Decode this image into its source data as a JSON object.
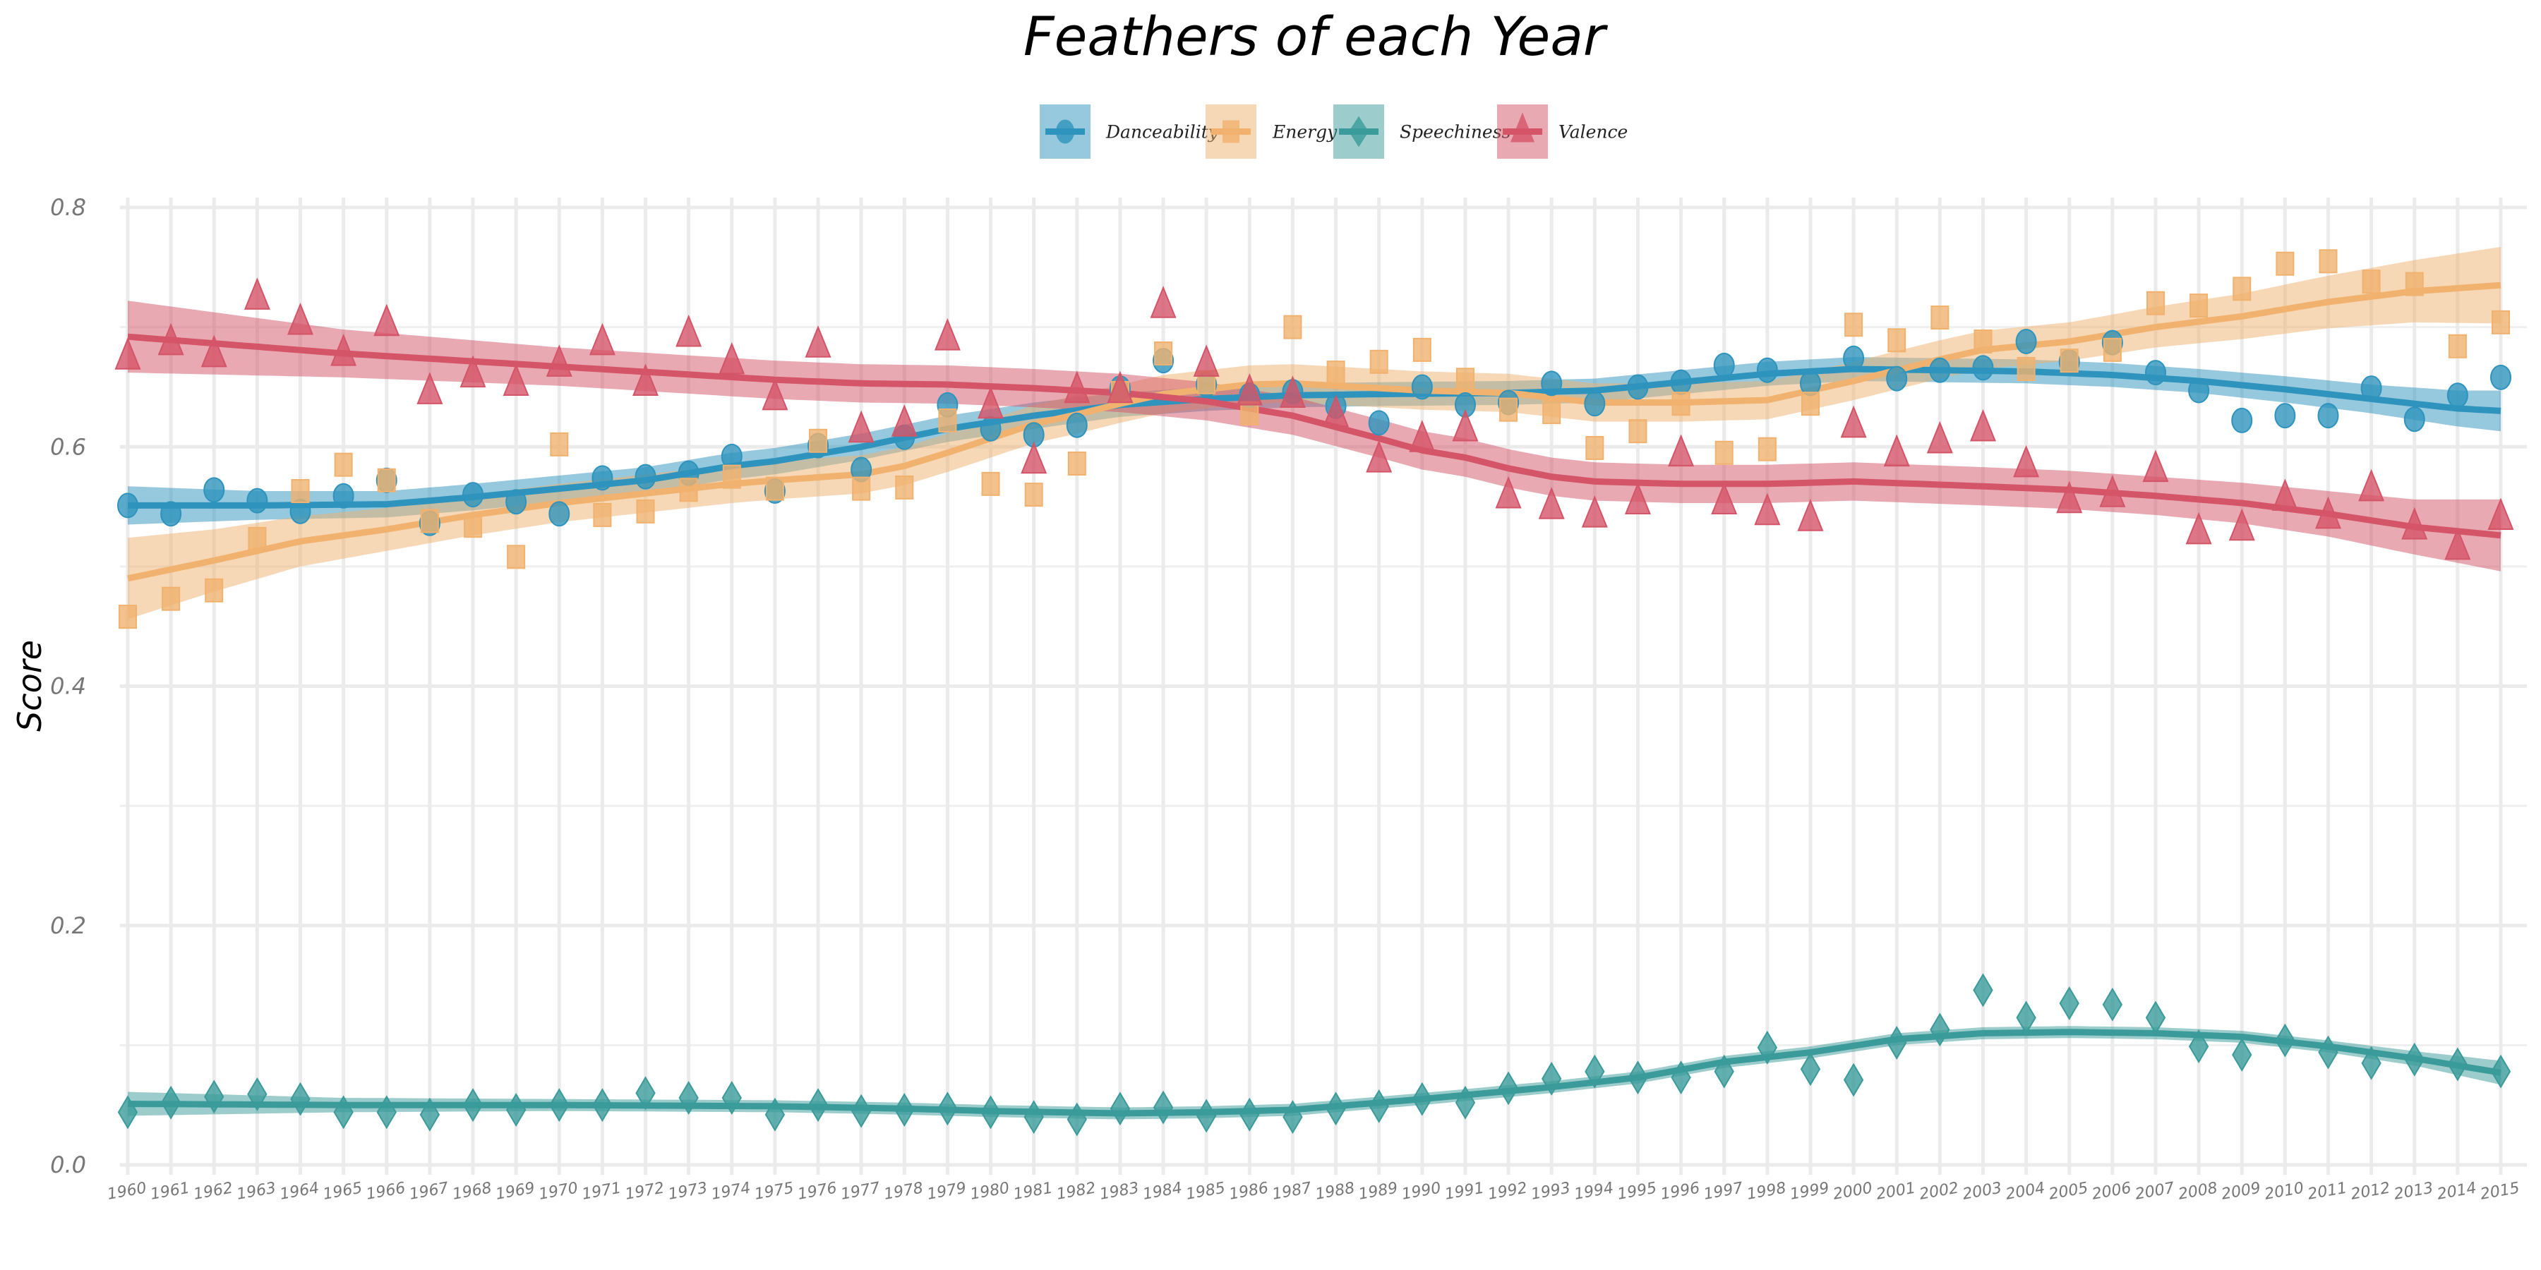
{
  "chart_data": {
    "type": "scatter",
    "title": "Feathers of each Year",
    "xlabel": "",
    "ylabel": "Score",
    "ylim": [
      0,
      0.8
    ],
    "yticks": [
      "0.0",
      "0.2",
      "0.4",
      "0.6",
      "0.8"
    ],
    "ytick_values": [
      0,
      0.2,
      0.4,
      0.6,
      0.8
    ],
    "xlim": [
      1960,
      2015
    ],
    "grid": true,
    "legend_position": "top",
    "x": [
      1960,
      1961,
      1962,
      1963,
      1964,
      1965,
      1966,
      1967,
      1968,
      1969,
      1970,
      1971,
      1972,
      1973,
      1974,
      1975,
      1976,
      1977,
      1978,
      1979,
      1980,
      1981,
      1982,
      1983,
      1984,
      1985,
      1986,
      1987,
      1988,
      1989,
      1990,
      1991,
      1992,
      1993,
      1994,
      1995,
      1996,
      1997,
      1998,
      1999,
      2000,
      2001,
      2002,
      2003,
      2004,
      2005,
      2006,
      2007,
      2008,
      2009,
      2010,
      2011,
      2012,
      2013,
      2014,
      2015
    ],
    "series": [
      {
        "name": "Danceability",
        "color": "#2E94BD",
        "marker": "circle",
        "values": [
          0.551,
          0.544,
          0.564,
          0.555,
          0.546,
          0.559,
          0.572,
          0.536,
          0.56,
          0.554,
          0.544,
          0.574,
          0.575,
          0.578,
          0.592,
          0.563,
          0.601,
          0.581,
          0.608,
          0.635,
          0.615,
          0.61,
          0.618,
          0.649,
          0.672,
          0.652,
          0.643,
          0.646,
          0.634,
          0.62,
          0.65,
          0.635,
          0.637,
          0.653,
          0.636,
          0.65,
          0.654,
          0.668,
          0.664,
          0.653,
          0.674,
          0.657,
          0.664,
          0.666,
          0.688,
          0.671,
          0.687,
          0.662,
          0.647,
          0.622,
          0.626,
          0.626,
          0.649,
          0.623,
          0.643,
          0.658
        ],
        "smooth": {
          "x": [
            1960,
            1963,
            1966,
            1968,
            1970,
            1972,
            1974,
            1975,
            1977,
            1979,
            1981,
            1983,
            1985,
            1987,
            1989,
            1992,
            1994,
            1996,
            1998,
            2000,
            2002,
            2004,
            2006,
            2008,
            2010,
            2012,
            2014,
            2015
          ],
          "fit": [
            0.551,
            0.551,
            0.552,
            0.558,
            0.565,
            0.572,
            0.584,
            0.588,
            0.6,
            0.615,
            0.626,
            0.635,
            0.64,
            0.643,
            0.644,
            0.645,
            0.647,
            0.654,
            0.661,
            0.665,
            0.664,
            0.663,
            0.66,
            0.655,
            0.648,
            0.64,
            0.632,
            0.63
          ],
          "se": [
            0.016,
            0.012,
            0.011,
            0.011,
            0.011,
            0.011,
            0.011,
            0.011,
            0.011,
            0.011,
            0.011,
            0.01,
            0.01,
            0.01,
            0.01,
            0.01,
            0.01,
            0.01,
            0.01,
            0.01,
            0.01,
            0.01,
            0.01,
            0.01,
            0.011,
            0.012,
            0.015,
            0.017
          ]
        }
      },
      {
        "name": "Energy",
        "color": "#F0B26E",
        "marker": "square",
        "values": [
          0.458,
          0.473,
          0.48,
          0.523,
          0.563,
          0.585,
          0.572,
          0.538,
          0.534,
          0.508,
          0.602,
          0.543,
          0.546,
          0.564,
          0.575,
          0.565,
          0.605,
          0.565,
          0.566,
          0.622,
          0.569,
          0.56,
          0.586,
          0.645,
          0.678,
          0.654,
          0.628,
          0.7,
          0.662,
          0.671,
          0.681,
          0.656,
          0.631,
          0.629,
          0.599,
          0.613,
          0.636,
          0.595,
          0.598,
          0.636,
          0.702,
          0.689,
          0.708,
          0.688,
          0.665,
          0.672,
          0.681,
          0.72,
          0.718,
          0.732,
          0.753,
          0.755,
          0.738,
          0.736,
          0.684,
          0.704
        ],
        "smooth": {
          "x": [
            1960,
            1962,
            1964,
            1966,
            1968,
            1970,
            1972,
            1974,
            1975,
            1977,
            1978,
            1979,
            1980,
            1981,
            1982,
            1983,
            1984,
            1985,
            1986,
            1987,
            1988,
            1990,
            1992,
            1994,
            1996,
            1998,
            1999,
            2000,
            2001,
            2002,
            2003,
            2005,
            2007,
            2009,
            2011,
            2013,
            2015
          ],
          "fit": [
            0.49,
            0.505,
            0.521,
            0.531,
            0.543,
            0.553,
            0.561,
            0.569,
            0.572,
            0.577,
            0.584,
            0.595,
            0.607,
            0.619,
            0.627,
            0.636,
            0.644,
            0.648,
            0.652,
            0.653,
            0.651,
            0.647,
            0.645,
            0.637,
            0.637,
            0.639,
            0.647,
            0.655,
            0.664,
            0.673,
            0.681,
            0.688,
            0.7,
            0.709,
            0.721,
            0.73,
            0.735
          ],
          "se": [
            0.034,
            0.026,
            0.021,
            0.018,
            0.017,
            0.016,
            0.016,
            0.016,
            0.016,
            0.016,
            0.016,
            0.016,
            0.016,
            0.016,
            0.016,
            0.016,
            0.016,
            0.016,
            0.016,
            0.016,
            0.016,
            0.016,
            0.016,
            0.016,
            0.016,
            0.016,
            0.016,
            0.016,
            0.016,
            0.016,
            0.016,
            0.016,
            0.017,
            0.019,
            0.022,
            0.026,
            0.032
          ]
        }
      },
      {
        "name": "Speechiness",
        "color": "#3A9B9A",
        "marker": "diamond",
        "values": [
          0.044,
          0.052,
          0.057,
          0.059,
          0.055,
          0.044,
          0.044,
          0.042,
          0.05,
          0.046,
          0.05,
          0.05,
          0.06,
          0.056,
          0.056,
          0.042,
          0.05,
          0.045,
          0.046,
          0.047,
          0.044,
          0.04,
          0.038,
          0.047,
          0.048,
          0.041,
          0.042,
          0.04,
          0.047,
          0.049,
          0.055,
          0.052,
          0.064,
          0.072,
          0.078,
          0.073,
          0.073,
          0.078,
          0.098,
          0.08,
          0.071,
          0.102,
          0.113,
          0.146,
          0.123,
          0.135,
          0.134,
          0.123,
          0.099,
          0.092,
          0.104,
          0.094,
          0.085,
          0.088,
          0.084,
          0.078
        ],
        "smooth": {
          "x": [
            1960,
            1965,
            1970,
            1975,
            1978,
            1980,
            1983,
            1985,
            1987,
            1990,
            1993,
            1995,
            1997,
            1999,
            2001,
            2003,
            2005,
            2007,
            2009,
            2011,
            2013,
            2015
          ],
          "fit": [
            0.051,
            0.05,
            0.05,
            0.049,
            0.047,
            0.045,
            0.043,
            0.044,
            0.046,
            0.055,
            0.065,
            0.073,
            0.086,
            0.094,
            0.105,
            0.11,
            0.111,
            0.11,
            0.107,
            0.099,
            0.089,
            0.077
          ],
          "se": [
            0.01,
            0.006,
            0.005,
            0.005,
            0.005,
            0.005,
            0.005,
            0.005,
            0.005,
            0.005,
            0.005,
            0.005,
            0.005,
            0.005,
            0.005,
            0.005,
            0.005,
            0.005,
            0.005,
            0.005,
            0.006,
            0.01
          ]
        }
      },
      {
        "name": "Valence",
        "color": "#D45468",
        "marker": "triangle",
        "values": [
          0.674,
          0.686,
          0.676,
          0.724,
          0.703,
          0.677,
          0.702,
          0.645,
          0.659,
          0.652,
          0.668,
          0.686,
          0.652,
          0.693,
          0.67,
          0.64,
          0.684,
          0.613,
          0.618,
          0.69,
          0.633,
          0.587,
          0.646,
          0.646,
          0.717,
          0.668,
          0.644,
          0.642,
          0.626,
          0.588,
          0.605,
          0.614,
          0.558,
          0.549,
          0.542,
          0.553,
          0.593,
          0.553,
          0.544,
          0.539,
          0.617,
          0.593,
          0.604,
          0.614,
          0.584,
          0.554,
          0.559,
          0.58,
          0.528,
          0.531,
          0.556,
          0.541,
          0.564,
          0.532,
          0.515,
          0.54
        ],
        "smooth": {
          "x": [
            1960,
            1965,
            1970,
            1975,
            1977,
            1979,
            1981,
            1983,
            1985,
            1987,
            1989,
            1990,
            1991,
            1992,
            1993,
            1994,
            1996,
            1998,
            2000,
            2003,
            2005,
            2007,
            2009,
            2011,
            2013,
            2015
          ],
          "fit": [
            0.692,
            0.678,
            0.667,
            0.656,
            0.653,
            0.652,
            0.649,
            0.645,
            0.638,
            0.626,
            0.607,
            0.597,
            0.591,
            0.582,
            0.575,
            0.571,
            0.569,
            0.569,
            0.571,
            0.567,
            0.564,
            0.559,
            0.553,
            0.544,
            0.533,
            0.526
          ],
          "se": [
            0.03,
            0.02,
            0.016,
            0.016,
            0.016,
            0.016,
            0.016,
            0.016,
            0.016,
            0.016,
            0.016,
            0.016,
            0.016,
            0.016,
            0.016,
            0.016,
            0.016,
            0.016,
            0.016,
            0.016,
            0.016,
            0.016,
            0.017,
            0.019,
            0.023,
            0.03
          ]
        }
      }
    ]
  }
}
